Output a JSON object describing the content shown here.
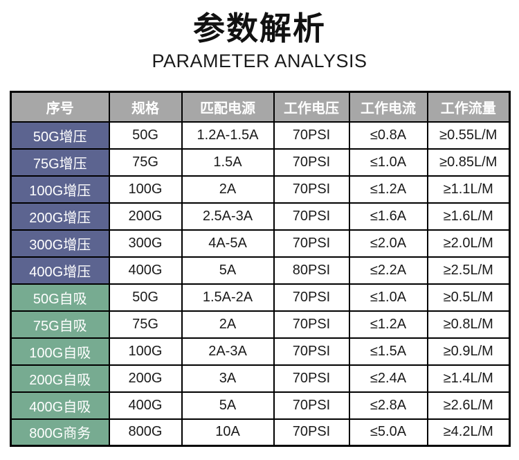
{
  "title": "参数解析",
  "subtitle": "PARAMETER ANALYSIS",
  "colors": {
    "header_bg": "#a7a7a7",
    "header_text": "#ffffff",
    "boost_bg": "#5c6490",
    "self_bg": "#77ab91",
    "label_text": "#ffffff",
    "border": "#000000"
  },
  "chart_data": {
    "type": "table",
    "title": "参数解析",
    "subtitle": "PARAMETER ANALYSIS",
    "headers": [
      "序号",
      "规格",
      "匹配电源",
      "工作电压",
      "工作电流",
      "工作流量"
    ],
    "rows": [
      {
        "label": "50G增压",
        "group": "boost",
        "cells": [
          "50G",
          "1.2A-1.5A",
          "70PSI",
          "≤0.8A",
          "≥0.55L/M"
        ]
      },
      {
        "label": "75G增压",
        "group": "boost",
        "cells": [
          "75G",
          "1.5A",
          "70PSI",
          "≤1.0A",
          "≥0.85L/M"
        ]
      },
      {
        "label": "100G增压",
        "group": "boost",
        "cells": [
          "100G",
          "2A",
          "70PSI",
          "≤1.2A",
          "≥1.1L/M"
        ]
      },
      {
        "label": "200G增压",
        "group": "boost",
        "cells": [
          "200G",
          "2.5A-3A",
          "70PSI",
          "≤1.6A",
          "≥1.6L/M"
        ]
      },
      {
        "label": "300G增压",
        "group": "boost",
        "cells": [
          "300G",
          "4A-5A",
          "70PSI",
          "≤2.0A",
          "≥2.0L/M"
        ]
      },
      {
        "label": "400G增压",
        "group": "boost",
        "cells": [
          "400G",
          "5A",
          "80PSI",
          "≤2.2A",
          "≥2.5L/M"
        ]
      },
      {
        "label": "50G自吸",
        "group": "self",
        "cells": [
          "50G",
          "1.5A-2A",
          "70PSI",
          "≤1.0A",
          "≥0.5L/M"
        ]
      },
      {
        "label": "75G自吸",
        "group": "self",
        "cells": [
          "75G",
          "2A",
          "70PSI",
          "≤1.2A",
          "≥0.8L/M"
        ]
      },
      {
        "label": "100G自吸",
        "group": "self",
        "cells": [
          "100G",
          "2A-3A",
          "70PSI",
          "≤1.5A",
          "≥0.9L/M"
        ]
      },
      {
        "label": "200G自吸",
        "group": "self",
        "cells": [
          "200G",
          "3A",
          "70PSI",
          "≤2.4A",
          "≥1.4L/M"
        ]
      },
      {
        "label": "400G自吸",
        "group": "self",
        "cells": [
          "400G",
          "5A",
          "70PSI",
          "≤2.8A",
          "≥2.6L/M"
        ]
      },
      {
        "label": "800G商务",
        "group": "self",
        "cells": [
          "800G",
          "10A",
          "70PSI",
          "≤5.0A",
          "≥4.2L/M"
        ]
      }
    ]
  }
}
